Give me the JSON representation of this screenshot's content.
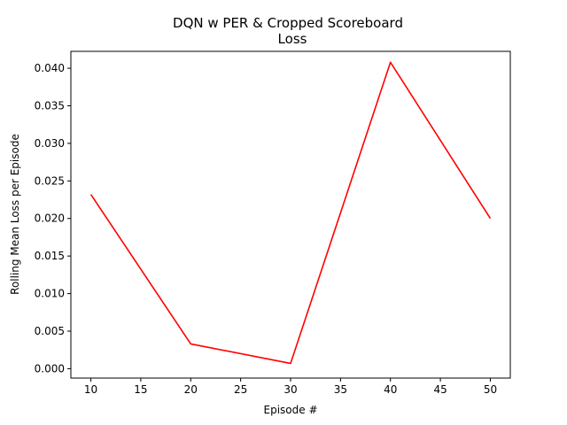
{
  "chart_data": {
    "type": "line",
    "title_line1": "DQN w PER & Cropped Scoreboard",
    "title_line2": "Loss",
    "xlabel": "Episode #",
    "ylabel": "Rolling Mean Loss per Episode",
    "xlim": [
      8,
      52
    ],
    "ylim": [
      -0.00125,
      0.04225
    ],
    "xticks": [
      10,
      15,
      20,
      25,
      30,
      35,
      40,
      45,
      50
    ],
    "xtick_labels": [
      "10",
      "15",
      "20",
      "25",
      "30",
      "35",
      "40",
      "45",
      "50"
    ],
    "yticks": [
      0.0,
      0.005,
      0.01,
      0.015,
      0.02,
      0.025,
      0.03,
      0.035,
      0.04
    ],
    "ytick_labels": [
      "0.000",
      "0.005",
      "0.010",
      "0.015",
      "0.020",
      "0.025",
      "0.030",
      "0.035",
      "0.040"
    ],
    "grid": false,
    "series": [
      {
        "color": "#ff0000",
        "x": [
          10,
          20,
          30,
          40,
          50
        ],
        "y": [
          0.0232,
          0.0033,
          0.0007,
          0.0408,
          0.02
        ]
      }
    ]
  }
}
